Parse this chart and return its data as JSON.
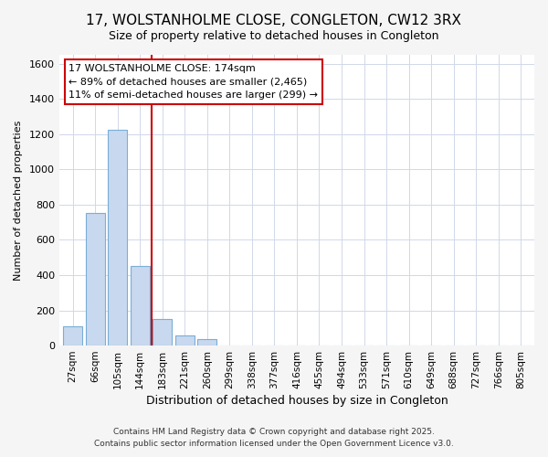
{
  "title": "17, WOLSTANHOLME CLOSE, CONGLETON, CW12 3RX",
  "subtitle": "Size of property relative to detached houses in Congleton",
  "xlabel": "Distribution of detached houses by size in Congleton",
  "ylabel": "Number of detached properties",
  "categories": [
    "27sqm",
    "66sqm",
    "105sqm",
    "144sqm",
    "183sqm",
    "221sqm",
    "260sqm",
    "299sqm",
    "338sqm",
    "377sqm",
    "416sqm",
    "455sqm",
    "494sqm",
    "533sqm",
    "571sqm",
    "610sqm",
    "649sqm",
    "688sqm",
    "727sqm",
    "766sqm",
    "805sqm"
  ],
  "values": [
    110,
    750,
    1225,
    450,
    150,
    60,
    35,
    0,
    0,
    0,
    0,
    0,
    0,
    0,
    0,
    0,
    0,
    0,
    0,
    0,
    0
  ],
  "bar_color": "#c8d8ee",
  "bar_edge_color": "#7aaed6",
  "vline_color": "#cc0000",
  "vline_index": 3.5,
  "annotation_box_fc": "#ffffff",
  "annotation_box_ec": "#cc0000",
  "annotation_line1": "17 WOLSTANHOLME CLOSE: 174sqm",
  "annotation_line2": "← 89% of detached houses are smaller (2,465)",
  "annotation_line3": "11% of semi-detached houses are larger (299) →",
  "annotation_fontsize": 8,
  "ylim": [
    0,
    1650
  ],
  "yticks": [
    0,
    200,
    400,
    600,
    800,
    1000,
    1200,
    1400,
    1600
  ],
  "title_fontsize": 11,
  "subtitle_fontsize": 9,
  "xlabel_fontsize": 9,
  "ylabel_fontsize": 8,
  "tick_fontsize": 8,
  "xtick_fontsize": 7.5,
  "footer_line1": "Contains HM Land Registry data © Crown copyright and database right 2025.",
  "footer_line2": "Contains public sector information licensed under the Open Government Licence v3.0.",
  "fig_bg_color": "#f5f5f5",
  "plot_bg_color": "#ffffff",
  "grid_color": "#d0d8e8"
}
